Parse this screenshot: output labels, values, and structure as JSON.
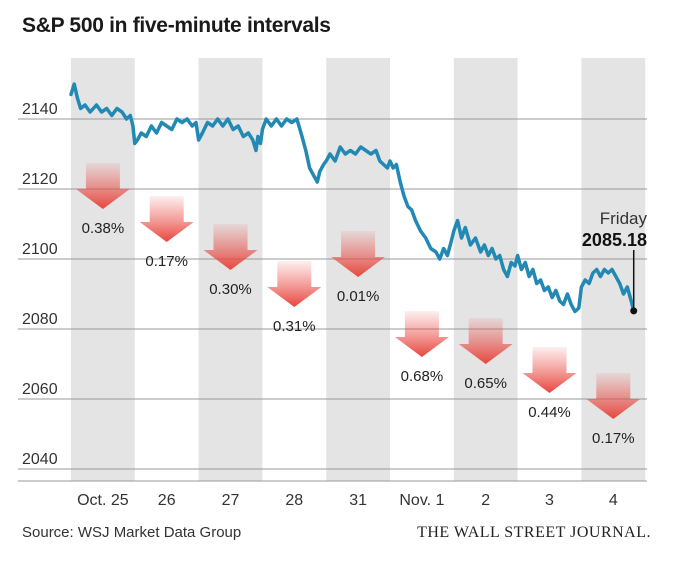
{
  "title": "S&P 500 in five-minute intervals",
  "source": "Source: WSJ Market Data Group",
  "brand": "THE WALL STREET JOURNAL.",
  "colors": {
    "line": "#2189b3",
    "band": "#e4e4e4",
    "grid": "#999999",
    "arrow": "#e8463e"
  },
  "chart_data": {
    "type": "line",
    "title": "S&P 500 in five-minute intervals",
    "categories": [
      "Oct. 25",
      "26",
      "27",
      "28",
      "31",
      "Nov. 1",
      "2",
      "3",
      "4"
    ],
    "y_ticks": [
      2040,
      2060,
      2080,
      2100,
      2120,
      2140
    ],
    "ylim": [
      2037,
      2155
    ],
    "grid": "horizontal",
    "day_changes": [
      {
        "day": "Oct. 25",
        "label": "0.38%",
        "direction": "down"
      },
      {
        "day": "26",
        "label": "0.17%",
        "direction": "down"
      },
      {
        "day": "27",
        "label": "0.30%",
        "direction": "down"
      },
      {
        "day": "28",
        "label": "0.31%",
        "direction": "down"
      },
      {
        "day": "31",
        "label": "0.01%",
        "direction": "down"
      },
      {
        "day": "Nov. 1",
        "label": "0.68%",
        "direction": "down"
      },
      {
        "day": "2",
        "label": "0.65%",
        "direction": "down"
      },
      {
        "day": "3",
        "label": "0.44%",
        "direction": "down"
      },
      {
        "day": "4",
        "label": "0.17%",
        "direction": "down"
      }
    ],
    "last_point": {
      "label": "Friday",
      "value": "2085.18"
    },
    "series": [
      {
        "values": [
          [
            0.0,
            2147
          ],
          [
            0.05,
            2150
          ],
          [
            0.1,
            2146
          ],
          [
            0.15,
            2143
          ],
          [
            0.22,
            2144
          ],
          [
            0.3,
            2142
          ],
          [
            0.4,
            2144
          ],
          [
            0.48,
            2142
          ],
          [
            0.56,
            2143
          ],
          [
            0.64,
            2141
          ],
          [
            0.72,
            2143
          ],
          [
            0.8,
            2142
          ],
          [
            0.87,
            2140
          ],
          [
            0.93,
            2141
          ],
          [
            0.97,
            2138
          ],
          [
            1.0,
            2133
          ],
          [
            1.04,
            2134
          ],
          [
            1.1,
            2136
          ],
          [
            1.18,
            2135
          ],
          [
            1.26,
            2138
          ],
          [
            1.34,
            2136
          ],
          [
            1.42,
            2139
          ],
          [
            1.5,
            2138
          ],
          [
            1.58,
            2137
          ],
          [
            1.66,
            2140
          ],
          [
            1.74,
            2139
          ],
          [
            1.82,
            2140
          ],
          [
            1.9,
            2138
          ],
          [
            1.96,
            2139
          ],
          [
            2.0,
            2134
          ],
          [
            2.06,
            2136
          ],
          [
            2.14,
            2139
          ],
          [
            2.22,
            2138
          ],
          [
            2.3,
            2140
          ],
          [
            2.38,
            2138
          ],
          [
            2.46,
            2140
          ],
          [
            2.54,
            2137
          ],
          [
            2.62,
            2138
          ],
          [
            2.7,
            2135
          ],
          [
            2.78,
            2136
          ],
          [
            2.85,
            2134
          ],
          [
            2.9,
            2131
          ],
          [
            2.93,
            2135
          ],
          [
            2.97,
            2133
          ],
          [
            3.0,
            2137
          ],
          [
            3.06,
            2140
          ],
          [
            3.14,
            2138
          ],
          [
            3.22,
            2140
          ],
          [
            3.3,
            2138
          ],
          [
            3.38,
            2140
          ],
          [
            3.46,
            2139
          ],
          [
            3.54,
            2140
          ],
          [
            3.62,
            2135
          ],
          [
            3.68,
            2131
          ],
          [
            3.74,
            2126
          ],
          [
            3.8,
            2124
          ],
          [
            3.86,
            2122
          ],
          [
            3.9,
            2125
          ],
          [
            3.96,
            2127
          ],
          [
            4.0,
            2128
          ],
          [
            4.06,
            2130
          ],
          [
            4.14,
            2128
          ],
          [
            4.22,
            2132
          ],
          [
            4.3,
            2130
          ],
          [
            4.38,
            2131
          ],
          [
            4.46,
            2130
          ],
          [
            4.54,
            2132
          ],
          [
            4.62,
            2131
          ],
          [
            4.7,
            2130
          ],
          [
            4.78,
            2131
          ],
          [
            4.84,
            2128
          ],
          [
            4.9,
            2127
          ],
          [
            4.96,
            2126
          ],
          [
            5.0,
            2128
          ],
          [
            5.05,
            2126
          ],
          [
            5.1,
            2127
          ],
          [
            5.16,
            2122
          ],
          [
            5.22,
            2118
          ],
          [
            5.28,
            2115
          ],
          [
            5.34,
            2114
          ],
          [
            5.4,
            2111
          ],
          [
            5.48,
            2108
          ],
          [
            5.56,
            2106
          ],
          [
            5.64,
            2103
          ],
          [
            5.72,
            2102
          ],
          [
            5.78,
            2100
          ],
          [
            5.84,
            2103
          ],
          [
            5.9,
            2101
          ],
          [
            5.96,
            2105
          ],
          [
            6.0,
            2108
          ],
          [
            6.06,
            2111
          ],
          [
            6.12,
            2106
          ],
          [
            6.18,
            2109
          ],
          [
            6.26,
            2104
          ],
          [
            6.34,
            2106
          ],
          [
            6.42,
            2102
          ],
          [
            6.48,
            2104
          ],
          [
            6.54,
            2101
          ],
          [
            6.6,
            2103
          ],
          [
            6.66,
            2100
          ],
          [
            6.72,
            2101
          ],
          [
            6.78,
            2097
          ],
          [
            6.84,
            2095
          ],
          [
            6.9,
            2099
          ],
          [
            6.96,
            2098
          ],
          [
            7.0,
            2101
          ],
          [
            7.06,
            2097
          ],
          [
            7.12,
            2099
          ],
          [
            7.18,
            2095
          ],
          [
            7.24,
            2097
          ],
          [
            7.3,
            2093
          ],
          [
            7.36,
            2094
          ],
          [
            7.42,
            2091
          ],
          [
            7.48,
            2092
          ],
          [
            7.54,
            2089
          ],
          [
            7.6,
            2091
          ],
          [
            7.66,
            2088
          ],
          [
            7.72,
            2087
          ],
          [
            7.78,
            2090
          ],
          [
            7.84,
            2087
          ],
          [
            7.9,
            2085
          ],
          [
            7.96,
            2086
          ],
          [
            8.0,
            2092
          ],
          [
            8.06,
            2094
          ],
          [
            8.12,
            2093
          ],
          [
            8.18,
            2096
          ],
          [
            8.24,
            2097
          ],
          [
            8.3,
            2095
          ],
          [
            8.36,
            2097
          ],
          [
            8.42,
            2096
          ],
          [
            8.48,
            2097
          ],
          [
            8.54,
            2095
          ],
          [
            8.6,
            2093
          ],
          [
            8.66,
            2090
          ],
          [
            8.72,
            2092
          ],
          [
            8.78,
            2088
          ],
          [
            8.82,
            2085.18
          ]
        ]
      }
    ]
  }
}
